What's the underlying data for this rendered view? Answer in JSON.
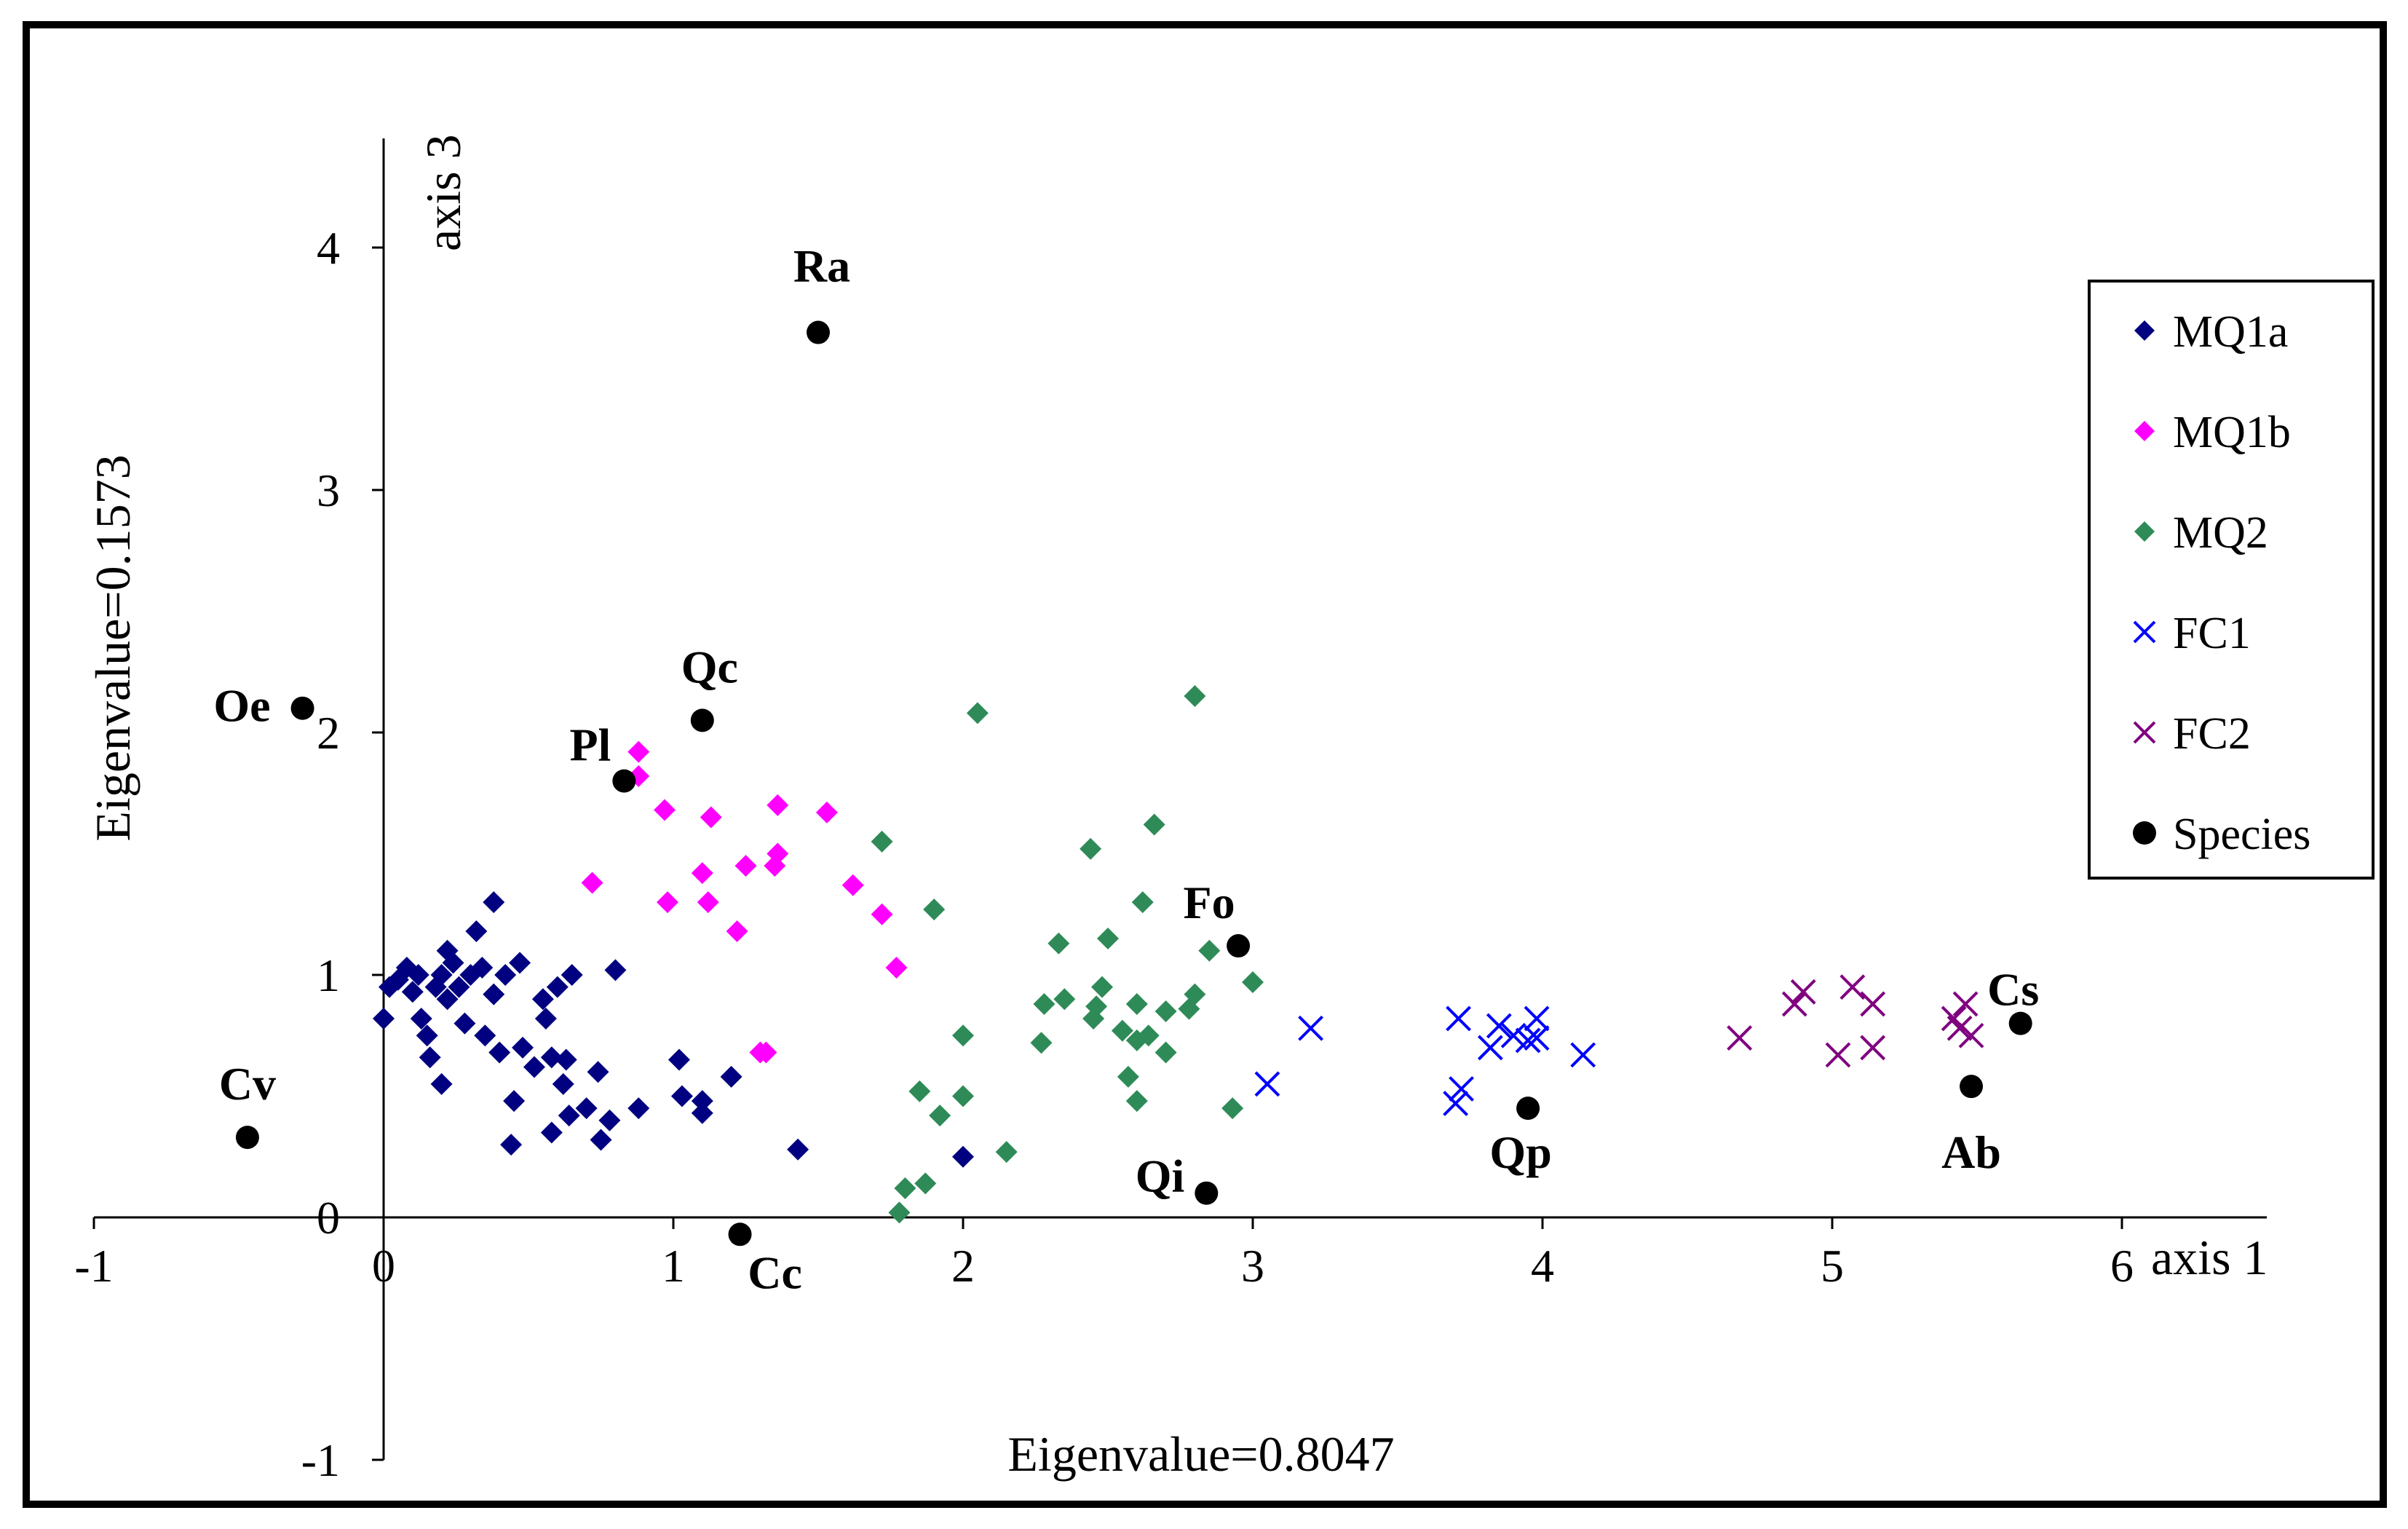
{
  "chart_data": {
    "type": "scatter",
    "axis1_title": "axis 1",
    "axis3_title": "axis 3",
    "x_eigen_label": "Eigenvalue=0.8047",
    "y_eigen_label": "Eigenvalue=0.1573",
    "xlim": [
      -1,
      6
    ],
    "ylim": [
      -1,
      4
    ],
    "x_ticks": [
      -1,
      0,
      1,
      2,
      3,
      4,
      5,
      6
    ],
    "y_ticks": [
      -1,
      0,
      1,
      2,
      3,
      4
    ],
    "legend_position": "right",
    "series": [
      {
        "name": "MQ1a",
        "marker": "diamond",
        "color": "#000080",
        "points": [
          [
            0.0,
            0.82
          ],
          [
            0.02,
            0.95
          ],
          [
            0.05,
            0.98
          ],
          [
            0.08,
            1.03
          ],
          [
            0.1,
            0.93
          ],
          [
            0.12,
            1.0
          ],
          [
            0.13,
            0.82
          ],
          [
            0.15,
            0.75
          ],
          [
            0.16,
            0.66
          ],
          [
            0.18,
            0.95
          ],
          [
            0.2,
            1.0
          ],
          [
            0.22,
            1.1
          ],
          [
            0.22,
            0.9
          ],
          [
            0.24,
            1.05
          ],
          [
            0.26,
            0.95
          ],
          [
            0.28,
            0.8
          ],
          [
            0.3,
            1.0
          ],
          [
            0.32,
            1.18
          ],
          [
            0.34,
            1.03
          ],
          [
            0.35,
            0.75
          ],
          [
            0.38,
            0.92
          ],
          [
            0.38,
            1.3
          ],
          [
            0.4,
            0.68
          ],
          [
            0.42,
            1.0
          ],
          [
            0.44,
            0.3
          ],
          [
            0.45,
            0.48
          ],
          [
            0.47,
            1.05
          ],
          [
            0.48,
            0.7
          ],
          [
            0.52,
            0.62
          ],
          [
            0.55,
            0.9
          ],
          [
            0.56,
            0.82
          ],
          [
            0.58,
            0.66
          ],
          [
            0.58,
            0.35
          ],
          [
            0.6,
            0.95
          ],
          [
            0.62,
            0.55
          ],
          [
            0.63,
            0.65
          ],
          [
            0.64,
            0.42
          ],
          [
            0.65,
            1.0
          ],
          [
            0.7,
            0.45
          ],
          [
            0.74,
            0.6
          ],
          [
            0.75,
            0.32
          ],
          [
            0.78,
            0.4
          ],
          [
            0.8,
            1.02
          ],
          [
            0.88,
            0.45
          ],
          [
            1.02,
            0.65
          ],
          [
            1.03,
            0.5
          ],
          [
            1.1,
            0.48
          ],
          [
            1.1,
            0.43
          ],
          [
            1.2,
            0.58
          ],
          [
            1.43,
            0.28
          ],
          [
            2.0,
            0.25
          ],
          [
            0.2,
            0.55
          ]
        ]
      },
      {
        "name": "MQ1b",
        "marker": "diamond",
        "color": "#FF00FF",
        "points": [
          [
            0.72,
            1.38
          ],
          [
            0.88,
            1.92
          ],
          [
            0.88,
            1.82
          ],
          [
            0.97,
            1.68
          ],
          [
            0.98,
            1.3
          ],
          [
            1.1,
            1.42
          ],
          [
            1.12,
            1.3
          ],
          [
            1.13,
            1.65
          ],
          [
            1.22,
            1.18
          ],
          [
            1.25,
            1.45
          ],
          [
            1.3,
            0.68
          ],
          [
            1.32,
            0.68
          ],
          [
            1.35,
            1.45
          ],
          [
            1.36,
            1.5
          ],
          [
            1.36,
            1.7
          ],
          [
            1.53,
            1.67
          ],
          [
            1.62,
            1.37
          ],
          [
            1.72,
            1.25
          ],
          [
            1.77,
            1.03
          ]
        ]
      },
      {
        "name": "MQ2",
        "marker": "diamond",
        "color": "#2E8B57",
        "points": [
          [
            1.72,
            1.55
          ],
          [
            1.78,
            0.02
          ],
          [
            1.8,
            0.12
          ],
          [
            1.85,
            0.52
          ],
          [
            1.87,
            0.14
          ],
          [
            1.9,
            1.27
          ],
          [
            1.92,
            0.42
          ],
          [
            2.0,
            0.5
          ],
          [
            2.0,
            0.75
          ],
          [
            2.05,
            2.08
          ],
          [
            2.15,
            0.27
          ],
          [
            2.27,
            0.72
          ],
          [
            2.28,
            0.88
          ],
          [
            2.33,
            1.13
          ],
          [
            2.35,
            0.9
          ],
          [
            2.44,
            1.52
          ],
          [
            2.45,
            0.82
          ],
          [
            2.46,
            0.87
          ],
          [
            2.48,
            0.95
          ],
          [
            2.5,
            1.15
          ],
          [
            2.55,
            0.77
          ],
          [
            2.57,
            0.58
          ],
          [
            2.6,
            0.73
          ],
          [
            2.6,
            0.88
          ],
          [
            2.6,
            0.48
          ],
          [
            2.62,
            1.3
          ],
          [
            2.64,
            0.75
          ],
          [
            2.66,
            1.62
          ],
          [
            2.7,
            0.68
          ],
          [
            2.7,
            0.85
          ],
          [
            2.78,
            0.86
          ],
          [
            2.8,
            0.92
          ],
          [
            2.8,
            2.15
          ],
          [
            2.85,
            1.1
          ],
          [
            2.93,
            0.45
          ],
          [
            3.0,
            0.97
          ]
        ]
      },
      {
        "name": "FC1",
        "marker": "x",
        "color": "#0000FF",
        "points": [
          [
            3.05,
            0.55
          ],
          [
            3.2,
            0.78
          ],
          [
            3.7,
            0.47
          ],
          [
            3.71,
            0.82
          ],
          [
            3.72,
            0.53
          ],
          [
            3.82,
            0.7
          ],
          [
            3.85,
            0.79
          ],
          [
            3.9,
            0.75
          ],
          [
            3.95,
            0.73
          ],
          [
            3.98,
            0.74
          ],
          [
            3.98,
            0.82
          ],
          [
            4.14,
            0.67
          ]
        ]
      },
      {
        "name": "FC2",
        "marker": "x",
        "color": "#800080",
        "points": [
          [
            4.68,
            0.74
          ],
          [
            4.87,
            0.88
          ],
          [
            4.9,
            0.93
          ],
          [
            5.02,
            0.67
          ],
          [
            5.07,
            0.95
          ],
          [
            5.14,
            0.88
          ],
          [
            5.14,
            0.7
          ],
          [
            5.42,
            0.82
          ],
          [
            5.44,
            0.78
          ],
          [
            5.46,
            0.88
          ],
          [
            5.48,
            0.75
          ]
        ]
      },
      {
        "name": "Species",
        "marker": "circle",
        "color": "#000000",
        "points": [
          [
            -0.47,
            0.33,
            "Cv"
          ],
          [
            -0.28,
            2.1,
            "Oe"
          ],
          [
            0.83,
            1.8,
            "Pl"
          ],
          [
            1.1,
            2.05,
            "Qc"
          ],
          [
            1.5,
            3.65,
            "Ra"
          ],
          [
            1.23,
            -0.07,
            "Cc"
          ],
          [
            2.84,
            0.1,
            "Qi"
          ],
          [
            2.95,
            1.12,
            "Fo"
          ],
          [
            3.95,
            0.45,
            "Qp"
          ],
          [
            5.48,
            0.54,
            "Ab"
          ],
          [
            5.65,
            0.8,
            "Cs"
          ]
        ]
      }
    ]
  }
}
